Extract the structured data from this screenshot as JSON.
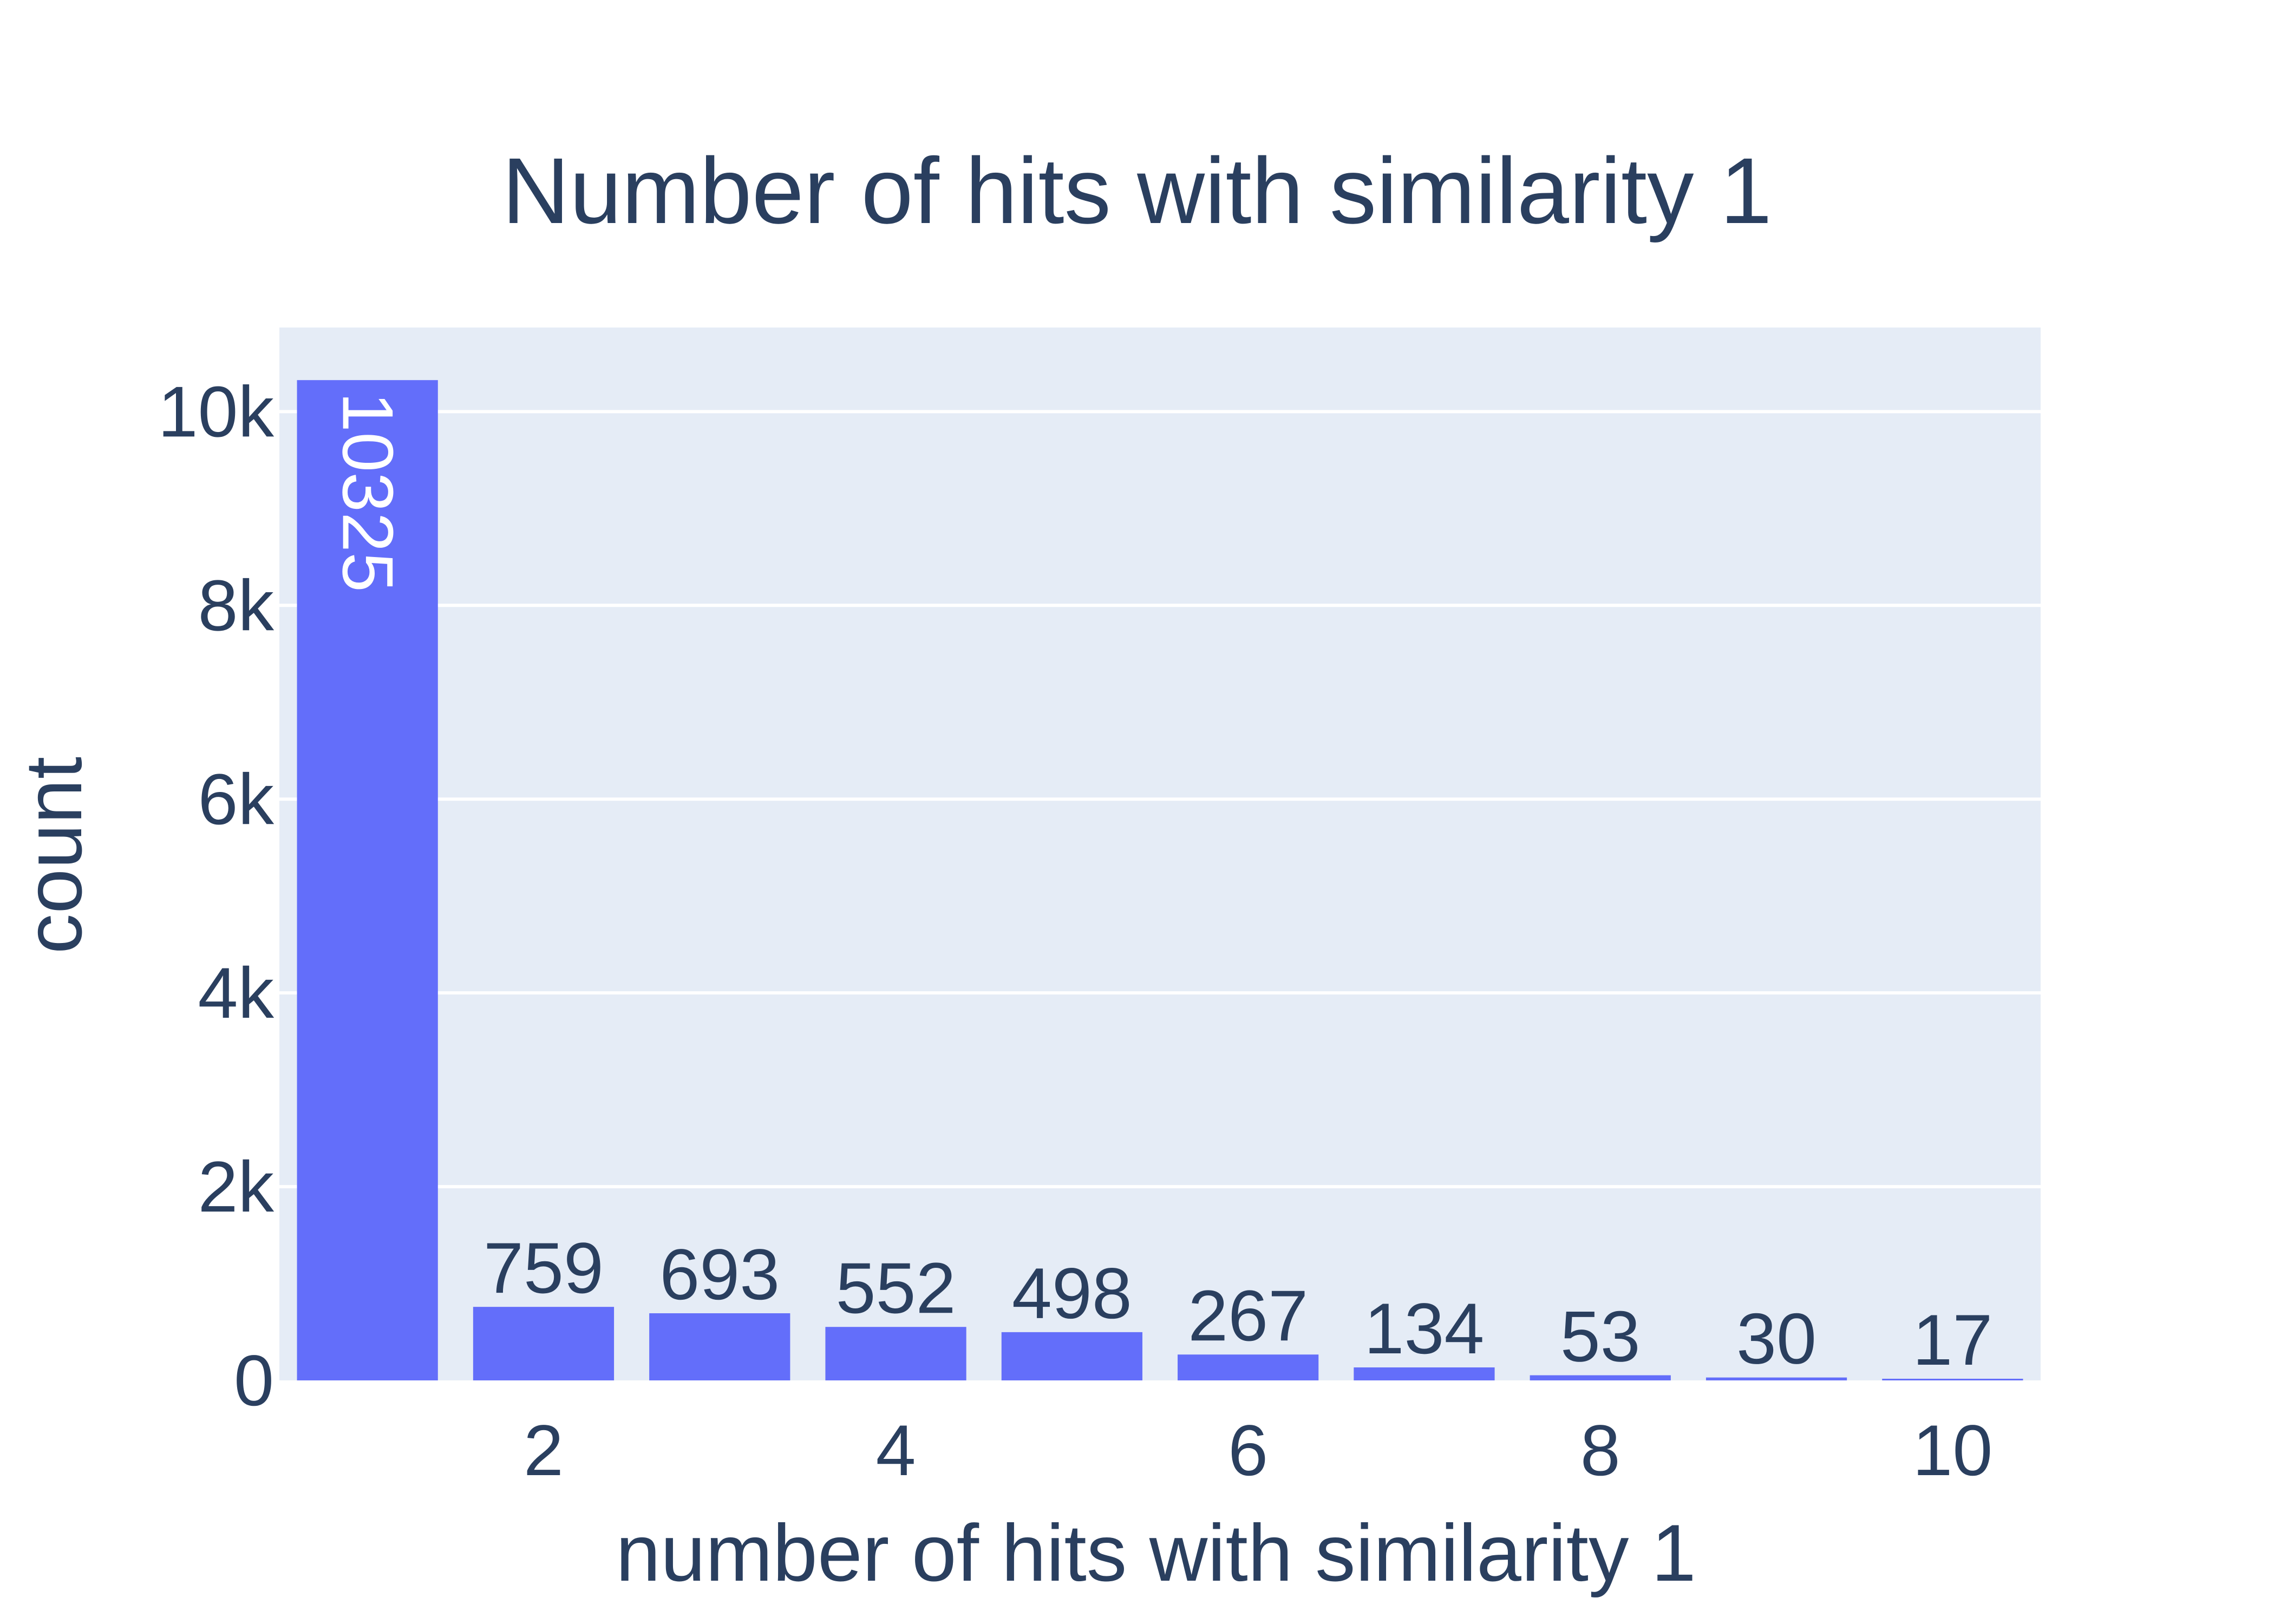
{
  "colors": {
    "background": "#ffffff",
    "plot_background": "#e5ecf6",
    "grid": "#ffffff",
    "bar": "#636efa",
    "text": "#2a3f5f",
    "inside_label": "#ffffff"
  },
  "chart_data": {
    "type": "bar",
    "title": "Number of hits with similarity 1",
    "xlabel": "number of hits with similarity 1",
    "ylabel": "count",
    "x": [
      1,
      2,
      3,
      4,
      5,
      6,
      7,
      8,
      9,
      10
    ],
    "values": [
      10325,
      759,
      693,
      552,
      498,
      267,
      134,
      53,
      30,
      17
    ],
    "value_labels": [
      "10325",
      "759",
      "693",
      "552",
      "498",
      "267",
      "134",
      "53",
      "30",
      "17"
    ],
    "xlim": [
      0.5,
      10.5
    ],
    "ylim": [
      0,
      10868
    ],
    "x_ticks": [
      {
        "value": 2,
        "label": "2"
      },
      {
        "value": 4,
        "label": "4"
      },
      {
        "value": 6,
        "label": "6"
      },
      {
        "value": 8,
        "label": "8"
      },
      {
        "value": 10,
        "label": "10"
      }
    ],
    "y_ticks": [
      {
        "value": 0,
        "label": "0"
      },
      {
        "value": 2000,
        "label": "2k"
      },
      {
        "value": 4000,
        "label": "4k"
      },
      {
        "value": 6000,
        "label": "6k"
      },
      {
        "value": 8000,
        "label": "8k"
      },
      {
        "value": 10000,
        "label": "10k"
      }
    ],
    "grid": true,
    "legend": false
  }
}
